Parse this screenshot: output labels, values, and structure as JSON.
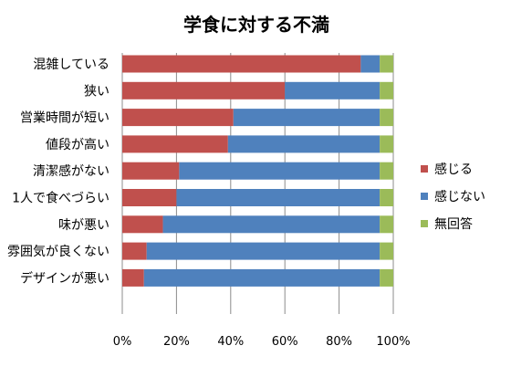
{
  "chart_data": {
    "type": "bar",
    "orientation": "horizontal",
    "stacked": "percent",
    "title": "学食に対する不満",
    "xlabel": "",
    "ylabel": "",
    "xlim": [
      0,
      100
    ],
    "x_ticks": [
      "0%",
      "20%",
      "40%",
      "60%",
      "80%",
      "100%"
    ],
    "grid": true,
    "legend_position": "right",
    "categories": [
      "混雑している",
      "狭い",
      "営業時間が短い",
      "値段が高い",
      "清潔感がない",
      "1人で食べづらい",
      "味が悪い",
      "雰囲気が良くない",
      "デザインが悪い"
    ],
    "series": [
      {
        "name": "感じる",
        "color": "#c0504d",
        "values": [
          88,
          60,
          41,
          39,
          21,
          20,
          15,
          9,
          8
        ]
      },
      {
        "name": "感じない",
        "color": "#4f81bd",
        "values": [
          7,
          35,
          54,
          56,
          74,
          75,
          80,
          86,
          87
        ]
      },
      {
        "name": "無回答",
        "color": "#9bbb59",
        "values": [
          5,
          5,
          5,
          5,
          5,
          5,
          5,
          5,
          5
        ]
      }
    ]
  }
}
